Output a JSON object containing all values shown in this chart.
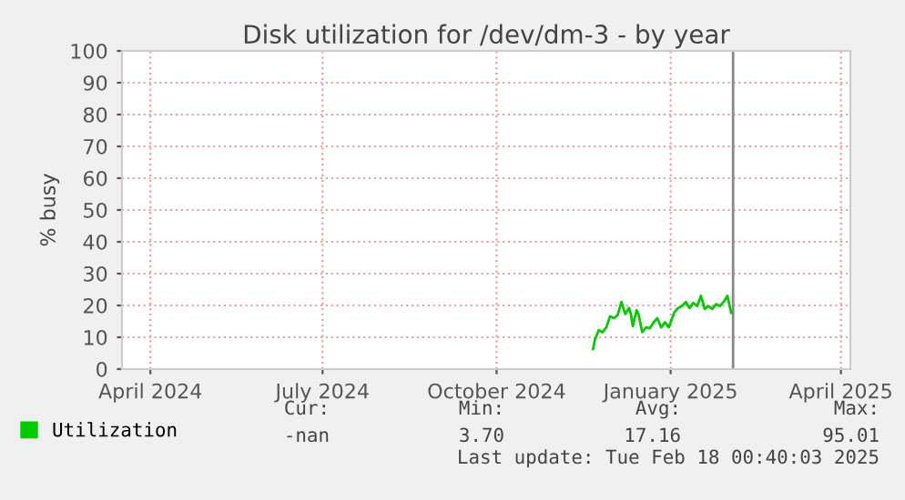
{
  "chart_data": {
    "type": "line",
    "title": "Disk utilization for /dev/dm-3 - by year",
    "ylabel": "% busy",
    "x": [
      "2024-11-21",
      "2024-11-22",
      "2024-11-24",
      "2024-11-26",
      "2024-11-28",
      "2024-11-30",
      "2024-12-02",
      "2024-12-04",
      "2024-12-06",
      "2024-12-08",
      "2024-12-10",
      "2024-12-11",
      "2024-12-12",
      "2024-12-14",
      "2024-12-15",
      "2024-12-17",
      "2024-12-19",
      "2024-12-21",
      "2024-12-23",
      "2024-12-25",
      "2024-12-27",
      "2024-12-29",
      "2024-12-31",
      "2025-01-03",
      "2025-01-05",
      "2025-01-07",
      "2025-01-09",
      "2025-01-11",
      "2025-01-13",
      "2025-01-15",
      "2025-01-17",
      "2025-01-19",
      "2025-01-21",
      "2025-01-23",
      "2025-01-25",
      "2025-01-27",
      "2025-01-29",
      "2025-01-31",
      "2025-02-01",
      "2025-02-02"
    ],
    "series": [
      {
        "name": "Utilization",
        "color": "#00cc00",
        "values": [
          6.3,
          9.3,
          12.2,
          11.6,
          13.1,
          16.6,
          16,
          17,
          21.1,
          17.3,
          19.2,
          17.3,
          13.5,
          18.5,
          17.3,
          11.6,
          13.1,
          12.8,
          14.7,
          16,
          13.1,
          14.7,
          13.1,
          17.9,
          19.2,
          19.8,
          21.1,
          19.2,
          20.8,
          19.8,
          23,
          18.9,
          19.8,
          18.9,
          20.4,
          19.8,
          21.1,
          23,
          20.4,
          17.7
        ]
      }
    ],
    "xlim": [
      "2024-03-17",
      "2025-04-06"
    ],
    "xticks": [
      {
        "value": "2024-04-01",
        "label": "April 2024"
      },
      {
        "value": "2024-07-01",
        "label": "July 2024"
      },
      {
        "value": "2024-10-01",
        "label": "October 2024"
      },
      {
        "value": "2025-01-01",
        "label": "January 2025"
      },
      {
        "value": "2025-04-01",
        "label": "April 2025"
      }
    ],
    "ylim": [
      0,
      100
    ],
    "yticks": [
      0,
      10,
      20,
      30,
      40,
      50,
      60,
      70,
      80,
      90,
      100
    ],
    "grid": true,
    "legend": "bottom",
    "marker": "none",
    "line_style": "solid",
    "ref_lines": [
      {
        "axis": "x",
        "value": "2025-02-03",
        "label": null,
        "color": "#888888",
        "line_style": "solid"
      }
    ],
    "annotations": [
      "Cur:",
      "Min:",
      "Avg:",
      "Max:",
      "-nan",
      "3.70",
      "17.16",
      "95.01",
      "Last update: Tue Feb 18 00:40:03 2025"
    ]
  }
}
